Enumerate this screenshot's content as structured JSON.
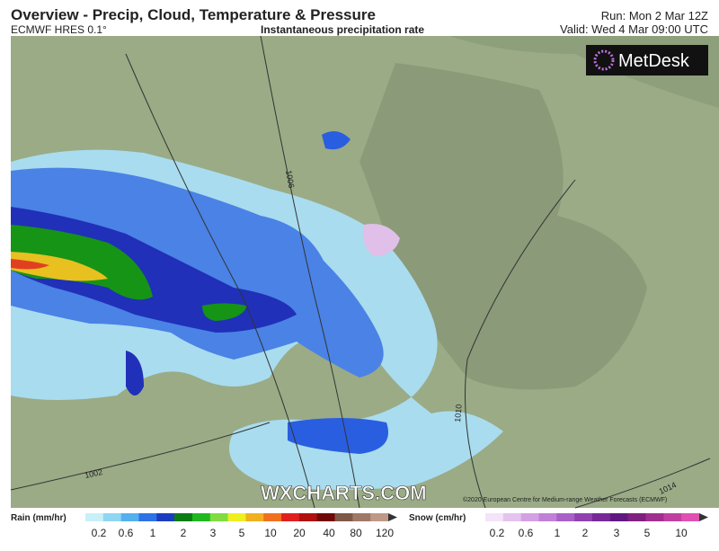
{
  "header": {
    "title": "Overview - Precip, Cloud, Temperature & Pressure",
    "model": "ECMWF HRES 0.1°",
    "subtitle": "Instantaneous precipitation rate",
    "run": "Run: Mon 2 Mar 12Z",
    "valid": "Valid: Wed 4 Mar 09:00 UTC"
  },
  "logo": "MetDesk",
  "watermark": "WXCHARTS.COM",
  "copyright": "©2020 European Centre for Medium-range Weather Forecasts (ECMWF)",
  "isobars": [
    "1006",
    "1002",
    "1010",
    "1014"
  ],
  "legend": {
    "rain": {
      "title": "Rain (mm/hr)",
      "labels": [
        "0.2",
        "0.6",
        "1",
        "2",
        "3",
        "5",
        "10",
        "20",
        "40",
        "80",
        "120"
      ]
    },
    "snow": {
      "title": "Snow (cm/hr)",
      "labels": [
        "0.2",
        "0.6",
        "1",
        "2",
        "3",
        "5",
        "10"
      ]
    }
  }
}
